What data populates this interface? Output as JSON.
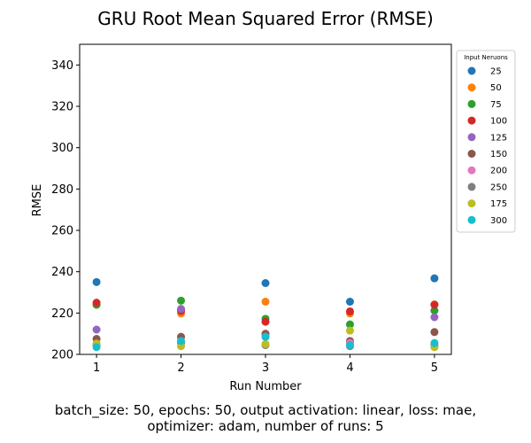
{
  "chart_data": {
    "type": "scatter",
    "title": "GRU Root Mean Squared Error (RMSE)",
    "xlabel": "Run Number",
    "ylabel": "RMSE",
    "x": [
      1,
      2,
      3,
      4,
      5
    ],
    "xlim": [
      0.8,
      5.2
    ],
    "ylim": [
      200,
      350
    ],
    "xticks": [
      "1",
      "2",
      "3",
      "4",
      "5"
    ],
    "yticks": [
      200,
      220,
      240,
      260,
      280,
      300,
      320,
      340
    ],
    "grid": false,
    "legend_title": "Input Neruons",
    "legend_position": "outside-right-top",
    "series": [
      {
        "name": "25",
        "color": "#1f77b4",
        "values": [
          235.0,
          221.5,
          234.5,
          225.5,
          236.8
        ]
      },
      {
        "name": "50",
        "color": "#ff7f0e",
        "values": [
          224.0,
          219.8,
          225.5,
          219.8,
          224.2
        ]
      },
      {
        "name": "75",
        "color": "#2ca02c",
        "values": [
          224.0,
          226.0,
          217.2,
          214.5,
          221.2
        ]
      },
      {
        "name": "100",
        "color": "#d62728",
        "values": [
          225.0,
          221.0,
          215.8,
          220.8,
          224.0
        ]
      },
      {
        "name": "125",
        "color": "#9467bd",
        "values": [
          212.0,
          222.0,
          209.8,
          205.8,
          218.0
        ]
      },
      {
        "name": "150",
        "color": "#8c564b",
        "values": [
          207.5,
          208.5,
          210.0,
          206.5,
          210.8
        ]
      },
      {
        "name": "200",
        "color": "#e377c2",
        "values": [
          205.0,
          206.2,
          208.5,
          205.5,
          204.8
        ]
      },
      {
        "name": "250",
        "color": "#7f7f7f",
        "values": [
          204.5,
          205.5,
          204.5,
          204.0,
          204.0
        ]
      },
      {
        "name": "175",
        "color": "#bcbd22",
        "values": [
          205.2,
          204.0,
          205.0,
          211.5,
          203.5
        ]
      },
      {
        "name": "300",
        "color": "#17becf",
        "values": [
          203.5,
          206.5,
          208.5,
          204.5,
          205.5
        ]
      }
    ]
  },
  "caption": {
    "line1": "batch_size: 50, epochs: 50, output activation: linear, loss: mae,",
    "line2": "optimizer: adam, number of runs: 5"
  }
}
